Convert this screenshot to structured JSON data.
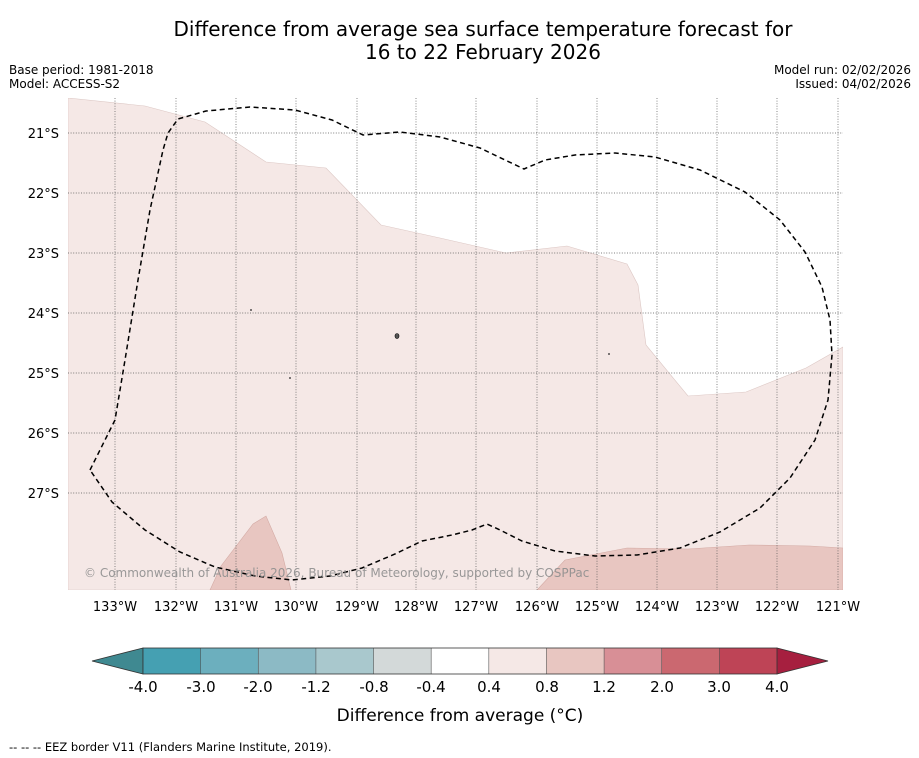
{
  "title": {
    "line1": "Difference from average sea surface temperature forecast for",
    "line2": "16 to 22 February 2026"
  },
  "meta_left": {
    "base_period": "Base period: 1981-2018",
    "model": "Model: ACCESS-S2"
  },
  "meta_right": {
    "model_run": "Model run: 02/02/2026",
    "issued": "Issued: 04/02/2026"
  },
  "map": {
    "lon_labels": [
      "133°W",
      "132°W",
      "131°W",
      "130°W",
      "129°W",
      "128°W",
      "127°W",
      "126°W",
      "125°W",
      "124°W",
      "123°W",
      "122°W",
      "121°W"
    ],
    "lat_labels": [
      "21°S",
      "22°S",
      "23°S",
      "24°S",
      "25°S",
      "26°S",
      "27°S"
    ],
    "copyright": "© Commonwealth of Australia 2026, Bureau of Meteorology, supported by COSPPac",
    "colors": {
      "anomaly_04_08": "#f5e8e6",
      "anomaly_08_12": "#e8c6c1",
      "eez_border": "#000000",
      "grid": "#555555"
    }
  },
  "colorbar": {
    "title": "Difference from average (°C)",
    "labels": [
      "-4.0",
      "-3.0",
      "-2.0",
      "-1.2",
      "-0.8",
      "-0.4",
      "0.4",
      "0.8",
      "1.2",
      "2.0",
      "3.0",
      "4.0"
    ],
    "under_color": "#3f8991",
    "over_color": "#a61f3f",
    "bin_colors": [
      "#45a0b2",
      "#6cafbe",
      "#8cbac5",
      "#a9c8cd",
      "#d3d9d9",
      "#ffffff",
      "#f5e8e6",
      "#e8c6c1",
      "#d88f96",
      "#cb6870",
      "#be4456"
    ]
  },
  "footer": "--  --  -- EEZ border V11 (Flanders Marine Institute, 2019)."
}
